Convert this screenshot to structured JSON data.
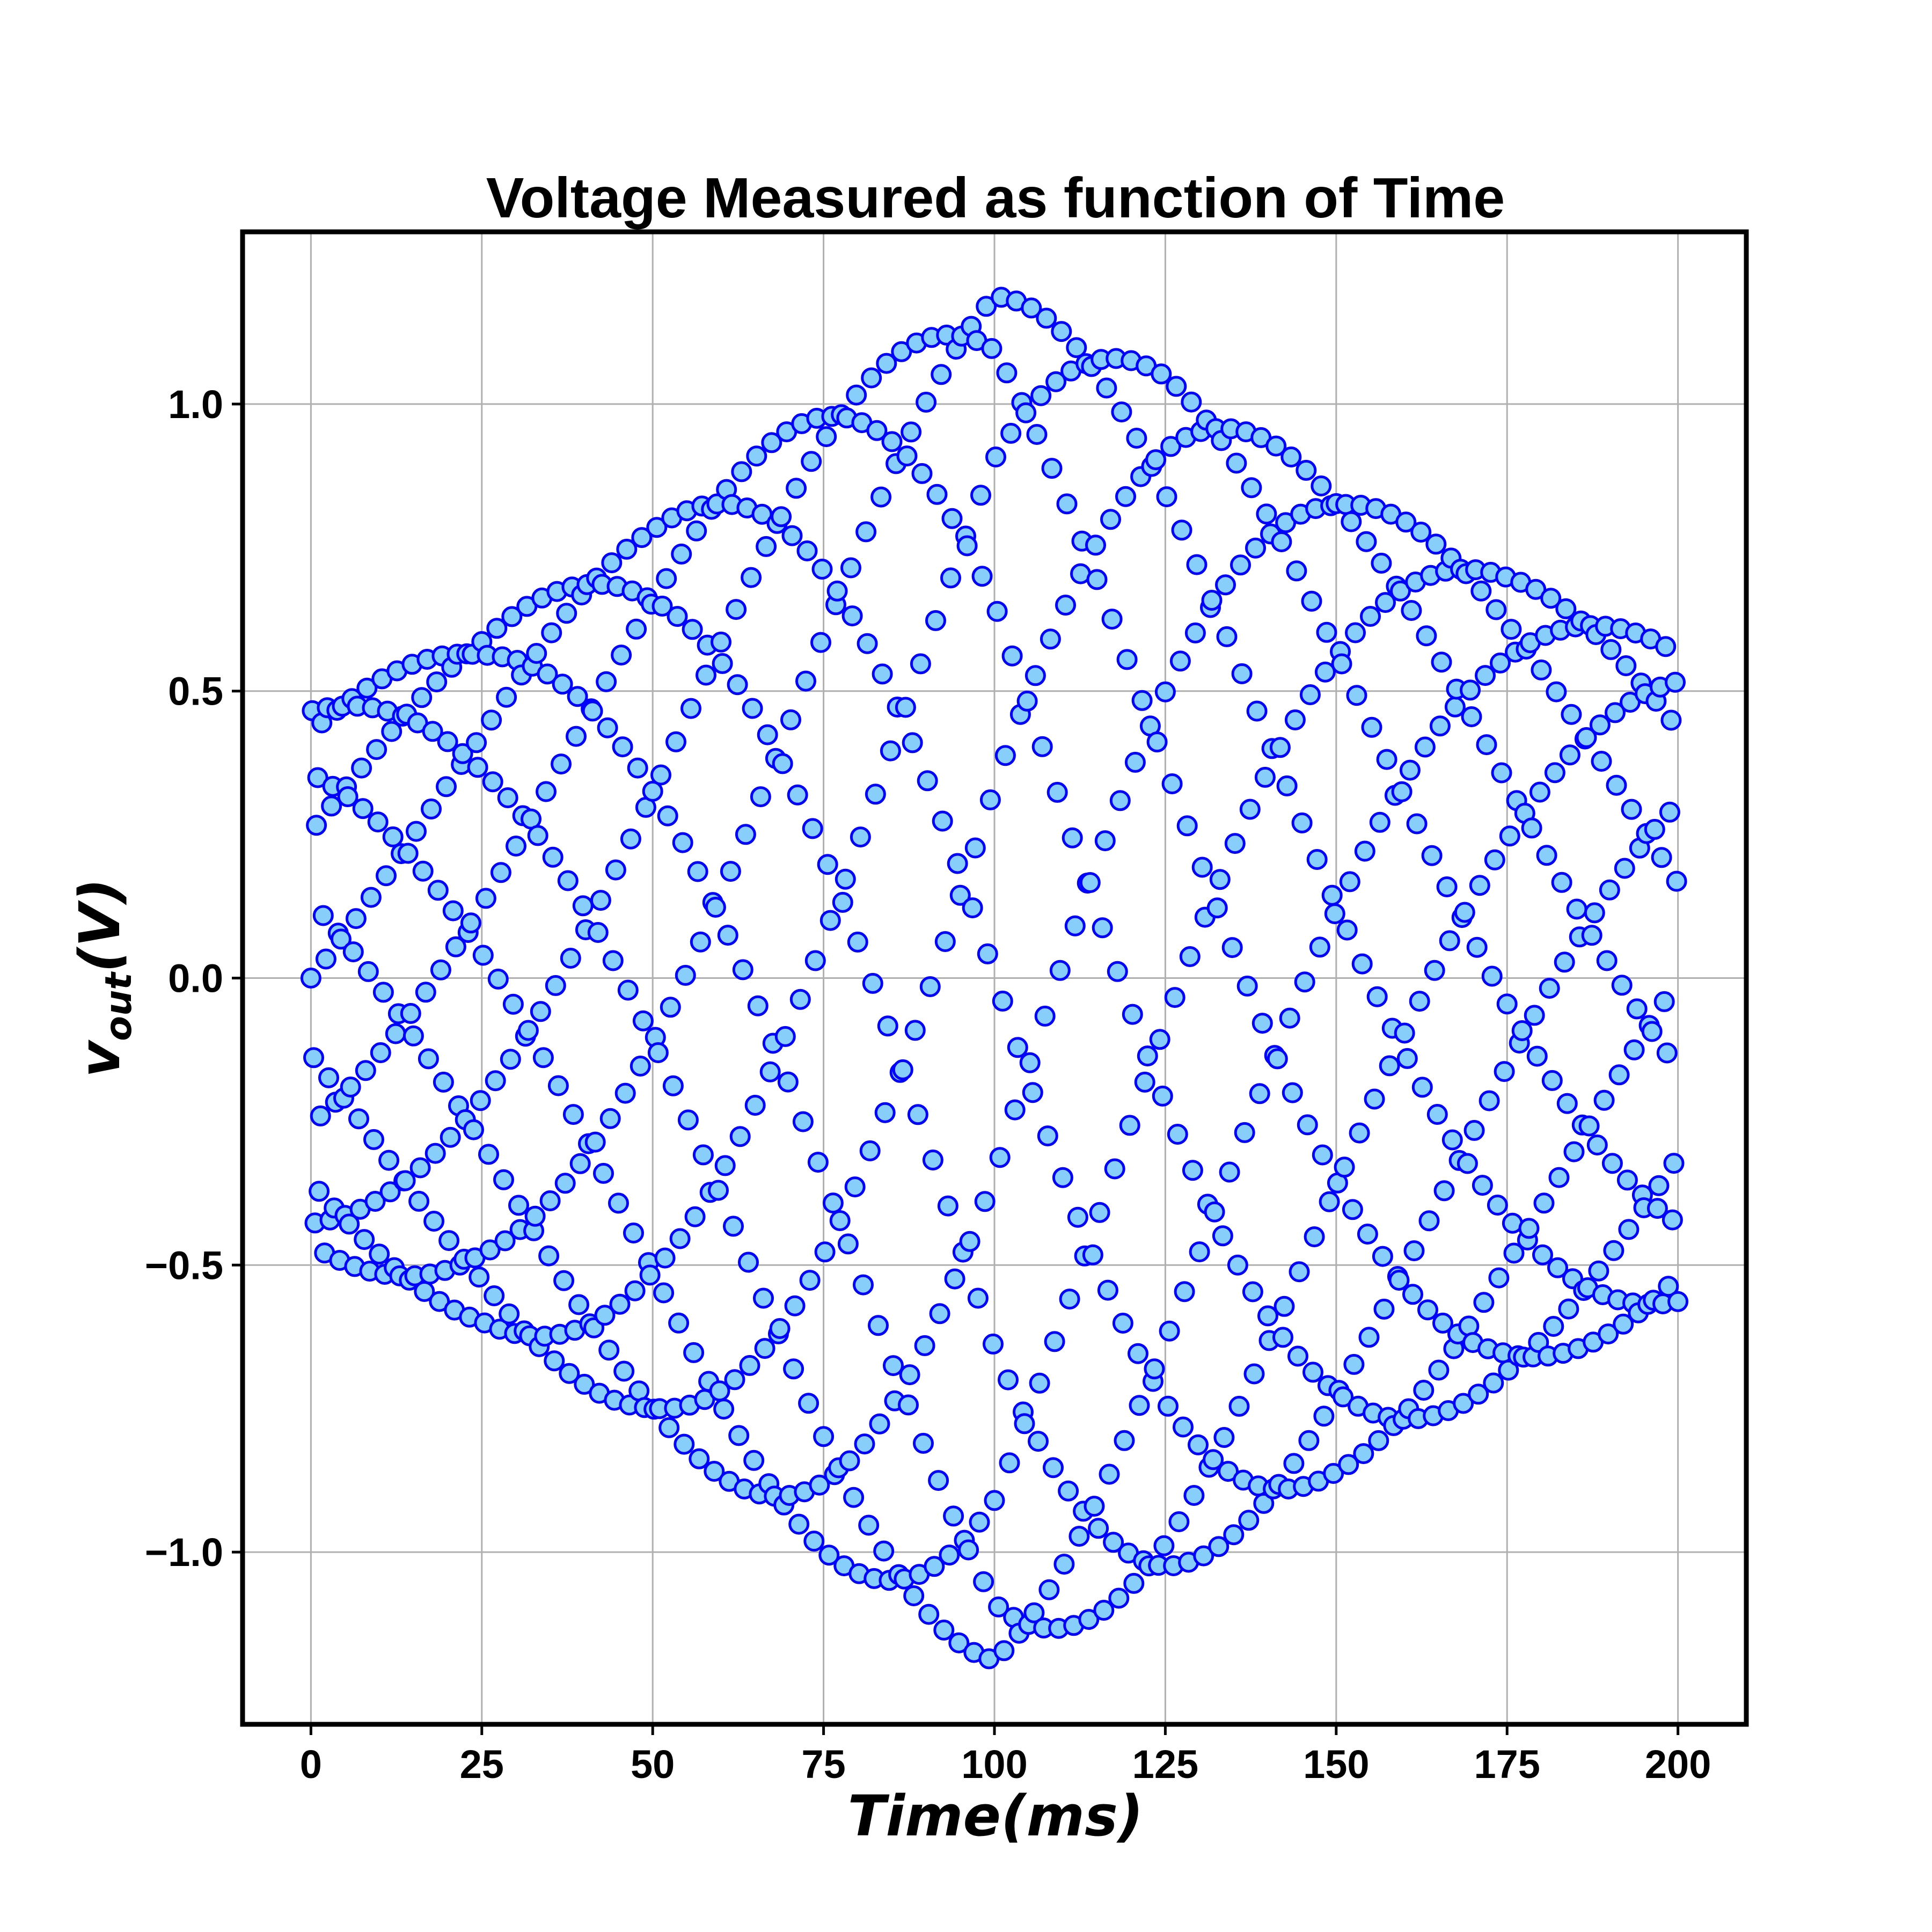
{
  "chart_data": {
    "type": "scatter",
    "title": "Voltage Measured as function of Time",
    "xlabel": "Time(ms)",
    "ylabel_main": "v",
    "ylabel_sub": "out",
    "ylabel_unit": "(V)",
    "xlim": [
      -10,
      210
    ],
    "ylim": [
      -1.3,
      1.3
    ],
    "xticks": [
      0,
      25,
      50,
      75,
      100,
      125,
      150,
      175,
      200
    ],
    "xtick_labels": [
      "0",
      "25",
      "50",
      "75",
      "100",
      "125",
      "150",
      "175",
      "200"
    ],
    "yticks": [
      1.0,
      0.5,
      0.0,
      -0.5,
      -1.0
    ],
    "ytick_labels": [
      "1.0",
      "0.5",
      "0.0",
      "−0.5",
      "−1.0"
    ],
    "grid": true,
    "marker": {
      "shape": "circle",
      "face_color": "#87cefa",
      "edge_color": "#0000ff"
    },
    "series": [
      {
        "x_range": [
          0,
          200
        ],
        "x_step": 0.2,
        "envelope": {
          "x": [
            0,
            25,
            50,
            75,
            100,
            125,
            150,
            175,
            200
          ],
          "amplitude": [
            0.47,
            0.6,
            0.78,
            1.0,
            1.2,
            1.05,
            0.86,
            0.7,
            0.57
          ]
        }
      }
    ]
  }
}
